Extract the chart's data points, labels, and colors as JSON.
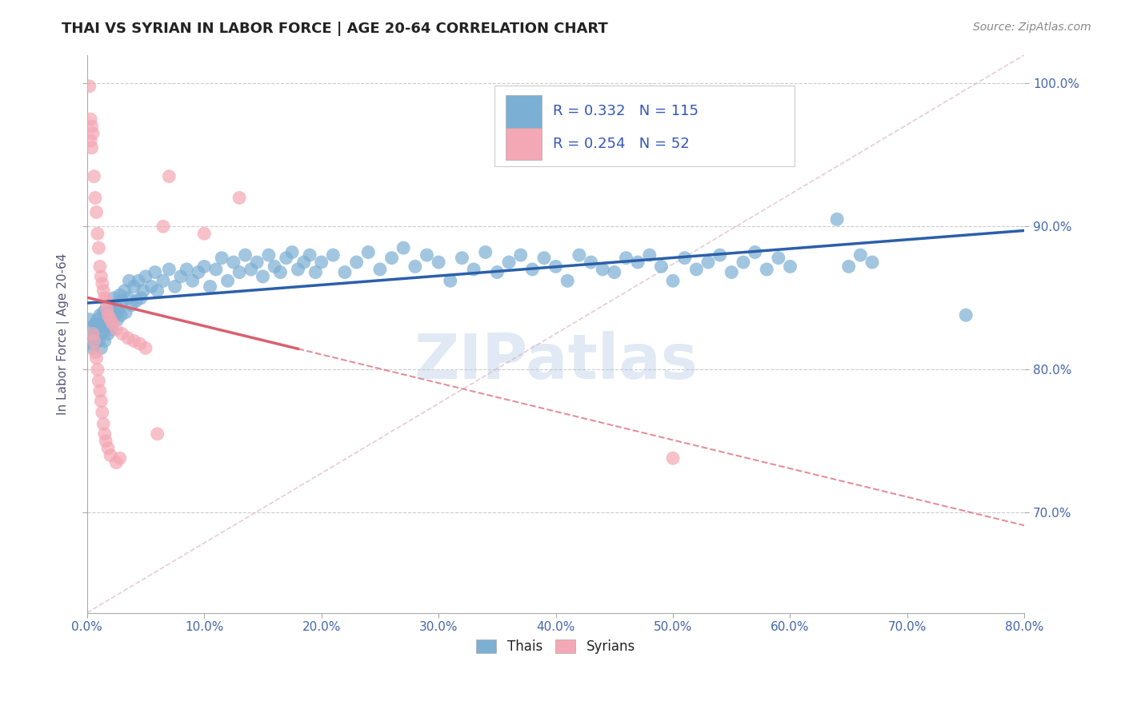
{
  "title": "THAI VS SYRIAN IN LABOR FORCE | AGE 20-64 CORRELATION CHART",
  "source": "Source: ZipAtlas.com",
  "ylabel": "In Labor Force | Age 20-64",
  "xlim": [
    0.0,
    0.8
  ],
  "ylim": [
    0.63,
    1.02
  ],
  "ytick_labels": [
    "70.0%",
    "80.0%",
    "90.0%",
    "100.0%"
  ],
  "ytick_values": [
    0.7,
    0.8,
    0.9,
    1.0
  ],
  "xtick_labels": [
    "0.0%",
    "10.0%",
    "20.0%",
    "30.0%",
    "40.0%",
    "50.0%",
    "60.0%",
    "70.0%",
    "80.0%"
  ],
  "xtick_values": [
    0.0,
    0.1,
    0.2,
    0.3,
    0.4,
    0.5,
    0.6,
    0.7,
    0.8
  ],
  "thai_color": "#7bafd4",
  "syrian_color": "#f4a7b4",
  "thai_R": 0.332,
  "thai_N": 115,
  "syrian_R": 0.254,
  "syrian_N": 52,
  "thai_line_color": "#2b5faa",
  "syrian_line_color": "#d96070",
  "diagonal_color": "#d4aac0",
  "watermark": "ZIPatlas",
  "background_color": "#ffffff",
  "thai_scatter": [
    [
      0.002,
      0.835
    ],
    [
      0.003,
      0.822
    ],
    [
      0.004,
      0.818
    ],
    [
      0.005,
      0.83
    ],
    [
      0.005,
      0.815
    ],
    [
      0.006,
      0.825
    ],
    [
      0.007,
      0.832
    ],
    [
      0.007,
      0.82
    ],
    [
      0.008,
      0.828
    ],
    [
      0.009,
      0.835
    ],
    [
      0.01,
      0.83
    ],
    [
      0.01,
      0.82
    ],
    [
      0.011,
      0.838
    ],
    [
      0.012,
      0.825
    ],
    [
      0.012,
      0.815
    ],
    [
      0.013,
      0.832
    ],
    [
      0.014,
      0.84
    ],
    [
      0.015,
      0.83
    ],
    [
      0.015,
      0.82
    ],
    [
      0.016,
      0.842
    ],
    [
      0.017,
      0.835
    ],
    [
      0.018,
      0.825
    ],
    [
      0.018,
      0.838
    ],
    [
      0.019,
      0.83
    ],
    [
      0.02,
      0.845
    ],
    [
      0.02,
      0.835
    ],
    [
      0.021,
      0.828
    ],
    [
      0.022,
      0.84
    ],
    [
      0.023,
      0.85
    ],
    [
      0.024,
      0.838
    ],
    [
      0.025,
      0.845
    ],
    [
      0.026,
      0.835
    ],
    [
      0.027,
      0.842
    ],
    [
      0.028,
      0.852
    ],
    [
      0.029,
      0.838
    ],
    [
      0.03,
      0.848
    ],
    [
      0.032,
      0.855
    ],
    [
      0.033,
      0.84
    ],
    [
      0.035,
      0.85
    ],
    [
      0.036,
      0.862
    ],
    [
      0.038,
      0.845
    ],
    [
      0.04,
      0.858
    ],
    [
      0.042,
      0.848
    ],
    [
      0.044,
      0.862
    ],
    [
      0.046,
      0.85
    ],
    [
      0.048,
      0.855
    ],
    [
      0.05,
      0.865
    ],
    [
      0.055,
      0.858
    ],
    [
      0.058,
      0.868
    ],
    [
      0.06,
      0.855
    ],
    [
      0.065,
      0.862
    ],
    [
      0.07,
      0.87
    ],
    [
      0.075,
      0.858
    ],
    [
      0.08,
      0.865
    ],
    [
      0.085,
      0.87
    ],
    [
      0.09,
      0.862
    ],
    [
      0.095,
      0.868
    ],
    [
      0.1,
      0.872
    ],
    [
      0.105,
      0.858
    ],
    [
      0.11,
      0.87
    ],
    [
      0.115,
      0.878
    ],
    [
      0.12,
      0.862
    ],
    [
      0.125,
      0.875
    ],
    [
      0.13,
      0.868
    ],
    [
      0.135,
      0.88
    ],
    [
      0.14,
      0.87
    ],
    [
      0.145,
      0.875
    ],
    [
      0.15,
      0.865
    ],
    [
      0.155,
      0.88
    ],
    [
      0.16,
      0.872
    ],
    [
      0.165,
      0.868
    ],
    [
      0.17,
      0.878
    ],
    [
      0.175,
      0.882
    ],
    [
      0.18,
      0.87
    ],
    [
      0.185,
      0.875
    ],
    [
      0.19,
      0.88
    ],
    [
      0.195,
      0.868
    ],
    [
      0.2,
      0.875
    ],
    [
      0.21,
      0.88
    ],
    [
      0.22,
      0.868
    ],
    [
      0.23,
      0.875
    ],
    [
      0.24,
      0.882
    ],
    [
      0.25,
      0.87
    ],
    [
      0.26,
      0.878
    ],
    [
      0.27,
      0.885
    ],
    [
      0.28,
      0.872
    ],
    [
      0.29,
      0.88
    ],
    [
      0.3,
      0.875
    ],
    [
      0.31,
      0.862
    ],
    [
      0.32,
      0.878
    ],
    [
      0.33,
      0.87
    ],
    [
      0.34,
      0.882
    ],
    [
      0.35,
      0.868
    ],
    [
      0.36,
      0.875
    ],
    [
      0.37,
      0.88
    ],
    [
      0.38,
      0.87
    ],
    [
      0.39,
      0.878
    ],
    [
      0.4,
      0.872
    ],
    [
      0.41,
      0.862
    ],
    [
      0.42,
      0.88
    ],
    [
      0.43,
      0.875
    ],
    [
      0.44,
      0.87
    ],
    [
      0.45,
      0.868
    ],
    [
      0.46,
      0.878
    ],
    [
      0.47,
      0.875
    ],
    [
      0.48,
      0.88
    ],
    [
      0.49,
      0.872
    ],
    [
      0.5,
      0.862
    ],
    [
      0.51,
      0.878
    ],
    [
      0.52,
      0.87
    ],
    [
      0.53,
      0.875
    ],
    [
      0.54,
      0.88
    ],
    [
      0.55,
      0.868
    ],
    [
      0.56,
      0.875
    ],
    [
      0.57,
      0.882
    ],
    [
      0.58,
      0.87
    ],
    [
      0.59,
      0.878
    ],
    [
      0.6,
      0.872
    ],
    [
      0.64,
      0.905
    ],
    [
      0.65,
      0.872
    ],
    [
      0.66,
      0.88
    ],
    [
      0.67,
      0.875
    ],
    [
      0.75,
      0.838
    ]
  ],
  "syrian_scatter": [
    [
      0.002,
      0.998
    ],
    [
      0.003,
      0.975
    ],
    [
      0.003,
      0.96
    ],
    [
      0.004,
      0.97
    ],
    [
      0.004,
      0.955
    ],
    [
      0.005,
      0.965
    ],
    [
      0.005,
      0.825
    ],
    [
      0.006,
      0.935
    ],
    [
      0.006,
      0.82
    ],
    [
      0.007,
      0.92
    ],
    [
      0.007,
      0.812
    ],
    [
      0.008,
      0.91
    ],
    [
      0.008,
      0.808
    ],
    [
      0.009,
      0.895
    ],
    [
      0.009,
      0.8
    ],
    [
      0.01,
      0.885
    ],
    [
      0.01,
      0.792
    ],
    [
      0.011,
      0.872
    ],
    [
      0.011,
      0.785
    ],
    [
      0.012,
      0.865
    ],
    [
      0.012,
      0.778
    ],
    [
      0.013,
      0.86
    ],
    [
      0.013,
      0.77
    ],
    [
      0.014,
      0.855
    ],
    [
      0.014,
      0.762
    ],
    [
      0.015,
      0.85
    ],
    [
      0.015,
      0.755
    ],
    [
      0.016,
      0.848
    ],
    [
      0.016,
      0.75
    ],
    [
      0.017,
      0.842
    ],
    [
      0.018,
      0.838
    ],
    [
      0.018,
      0.745
    ],
    [
      0.02,
      0.835
    ],
    [
      0.02,
      0.74
    ],
    [
      0.022,
      0.832
    ],
    [
      0.025,
      0.828
    ],
    [
      0.025,
      0.735
    ],
    [
      0.028,
      0.738
    ],
    [
      0.03,
      0.825
    ],
    [
      0.035,
      0.822
    ],
    [
      0.04,
      0.82
    ],
    [
      0.045,
      0.818
    ],
    [
      0.05,
      0.815
    ],
    [
      0.06,
      0.755
    ],
    [
      0.065,
      0.9
    ],
    [
      0.07,
      0.935
    ],
    [
      0.1,
      0.895
    ],
    [
      0.13,
      0.92
    ],
    [
      0.5,
      0.738
    ]
  ]
}
